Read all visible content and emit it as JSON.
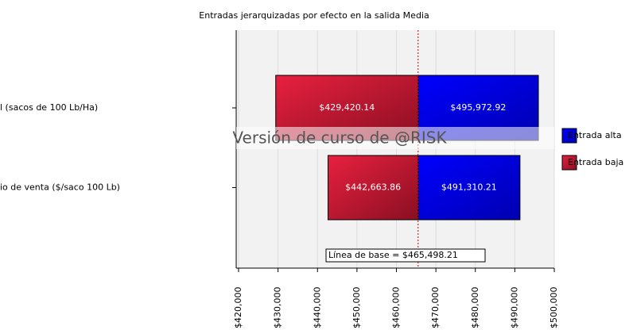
{
  "chart_data": {
    "type": "tornado",
    "title": "Entradas jerarquizadas por efecto en la salida Media",
    "categories": [
      "l (sacos de 100 Lb/Ha)",
      "io de venta ($/saco 100 Lb)"
    ],
    "series": [
      {
        "name": "Entrada alta",
        "color": "#0000ff",
        "values": [
          495972.92,
          491310.21
        ],
        "value_labels": [
          "$495,972.92",
          "$491,310.21"
        ]
      },
      {
        "name": "Entrada baja",
        "color": "#d81c3c",
        "values": [
          429420.14,
          442663.86
        ],
        "value_labels": [
          "$429,420.14",
          "$442,663.86"
        ]
      }
    ],
    "baseline": 465498.21,
    "baseline_label": "Línea de base = $465,498.21",
    "watermark": "Versión de curso de @RISK",
    "xlim": [
      420000,
      500000
    ],
    "xticks": [
      {
        "value": 420000,
        "label": "$420,000"
      },
      {
        "value": 430000,
        "label": "$430,000"
      },
      {
        "value": 440000,
        "label": "$440,000"
      },
      {
        "value": 450000,
        "label": "$450,000"
      },
      {
        "value": 460000,
        "label": "$460,000"
      },
      {
        "value": 470000,
        "label": "$470,000"
      },
      {
        "value": 480000,
        "label": "$480,000"
      },
      {
        "value": 490000,
        "label": "$490,000"
      },
      {
        "value": 500000,
        "label": "$500,000"
      }
    ],
    "grid": true,
    "legend": "right"
  }
}
